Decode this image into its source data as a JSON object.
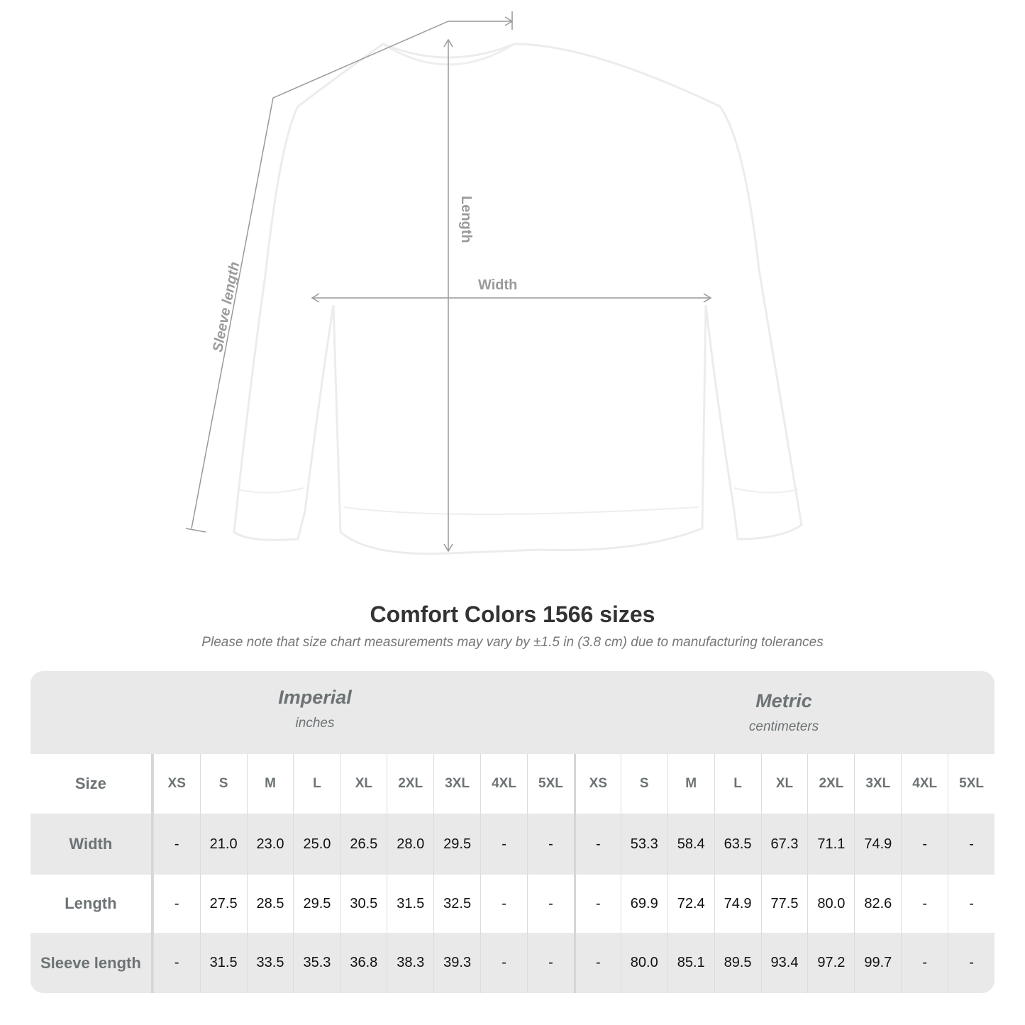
{
  "diagram": {
    "labels": {
      "length": "Length",
      "width": "Width",
      "sleeve": "Sleeve length"
    },
    "line_color": "#999999"
  },
  "title": "Comfort Colors 1566 sizes",
  "note": "Please note that size chart measurements may vary by ±1.5 in (3.8 cm) due to manufacturing tolerances",
  "table": {
    "imperial": {
      "name": "Imperial",
      "unit": "inches"
    },
    "metric": {
      "name": "Metric",
      "unit": "centimeters"
    },
    "size_label": "Size",
    "sizes": [
      "XS",
      "S",
      "M",
      "L",
      "XL",
      "2XL",
      "3XL",
      "4XL",
      "5XL"
    ],
    "rows": [
      {
        "label": "Width",
        "imperial": [
          "-",
          "21.0",
          "23.0",
          "25.0",
          "26.5",
          "28.0",
          "29.5",
          "-",
          "-"
        ],
        "metric": [
          "-",
          "53.3",
          "58.4",
          "63.5",
          "67.3",
          "71.1",
          "74.9",
          "-",
          "-"
        ]
      },
      {
        "label": "Length",
        "imperial": [
          "-",
          "27.5",
          "28.5",
          "29.5",
          "30.5",
          "31.5",
          "32.5",
          "-",
          "-"
        ],
        "metric": [
          "-",
          "69.9",
          "72.4",
          "74.9",
          "77.5",
          "80.0",
          "82.6",
          "-",
          "-"
        ]
      },
      {
        "label": "Sleeve length",
        "imperial": [
          "-",
          "31.5",
          "33.5",
          "35.3",
          "36.8",
          "38.3",
          "39.3",
          "-",
          "-"
        ],
        "metric": [
          "-",
          "80.0",
          "85.1",
          "89.5",
          "93.4",
          "97.2",
          "99.7",
          "-",
          "-"
        ]
      }
    ],
    "header_bg": "#e9e9e9"
  }
}
